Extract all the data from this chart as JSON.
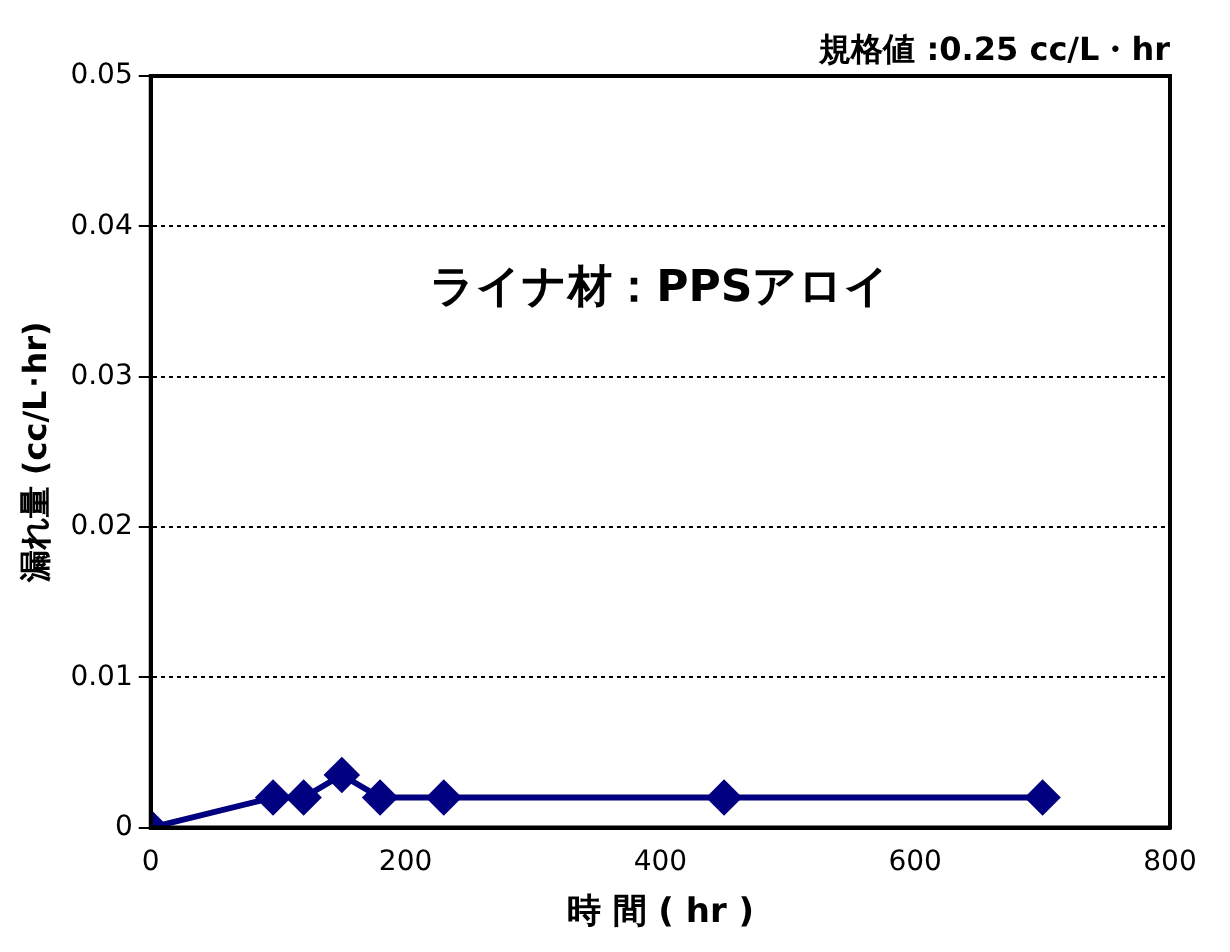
{
  "chart_data": {
    "type": "line",
    "xlabel": "時 間 ( hr )",
    "ylabel": "漏れ量 (cc/L･hr)",
    "annotations": [
      "規格値 :0.25 cc/L・hr",
      "ライナ材：PPSアロイ"
    ],
    "x": [
      0,
      96,
      120,
      150,
      180,
      230,
      450,
      700
    ],
    "series": [
      {
        "color": "#000080",
        "values": [
          0,
          0.002,
          0.002,
          0.0035,
          0.002,
          0.002,
          0.002,
          0.002
        ]
      }
    ],
    "xlim": [
      0,
      800
    ],
    "xticks": [
      0,
      200,
      400,
      600,
      800
    ],
    "ylim": [
      0,
      0.05
    ],
    "yticks": [
      0,
      0.01,
      0.02,
      0.03,
      0.04,
      0.05
    ],
    "grid": "y",
    "marker": "diamond",
    "line_style": "solid",
    "legend": false
  }
}
